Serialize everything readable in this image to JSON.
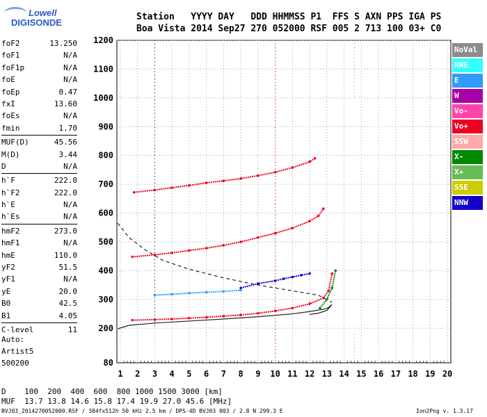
{
  "logo": {
    "line1": "Lowell",
    "line2": "DIGISONDE"
  },
  "header": {
    "row1": "Station   YYYY DAY   DDD HHMMSS P1  FFS S AXN PPS IGA PS",
    "row2": "Boa Vista 2014 Sep27 270 052000 RSF 005 2 713 100 03+ C0"
  },
  "params": [
    {
      "label": "foF2",
      "value": "13.250"
    },
    {
      "label": "foF1",
      "value": "N/A"
    },
    {
      "label": "foF1p",
      "value": "N/A"
    },
    {
      "label": "foE",
      "value": "N/A"
    },
    {
      "label": "foEp",
      "value": "0.47"
    },
    {
      "label": "fxI",
      "value": "13.60"
    },
    {
      "label": "foEs",
      "value": "N/A"
    },
    {
      "label": "fmin",
      "value": "1.70"
    },
    {
      "label": "MUF(D)",
      "value": "45.56"
    },
    {
      "label": "M(D)",
      "value": "3.44"
    },
    {
      "label": "D",
      "value": "N/A"
    },
    {
      "label": "h`F",
      "value": "222.0"
    },
    {
      "label": "h`F2",
      "value": "222.0"
    },
    {
      "label": "h`E",
      "value": "N/A"
    },
    {
      "label": "h`Es",
      "value": "N/A"
    },
    {
      "label": "hmF2",
      "value": "273.0"
    },
    {
      "label": "hmF1",
      "value": "N/A"
    },
    {
      "label": "hmE",
      "value": "110.0"
    },
    {
      "label": "yF2",
      "value": "51.5"
    },
    {
      "label": "yF1",
      "value": "N/A"
    },
    {
      "label": "yE",
      "value": "20.0"
    },
    {
      "label": "B0",
      "value": "42.5"
    },
    {
      "label": "B1",
      "value": "4.05"
    },
    {
      "label": "C-level",
      "value": "11"
    }
  ],
  "auto": {
    "l1": "Auto:",
    "l2": "Artist5",
    "l3": "500200"
  },
  "legend": [
    {
      "label": "NoVal",
      "color": "#8c8c8c"
    },
    {
      "label": "NNE",
      "color": "#33ffff"
    },
    {
      "label": "E",
      "color": "#3399ff"
    },
    {
      "label": "W",
      "color": "#aa00aa"
    },
    {
      "label": "Vo-",
      "color": "#ff44aa"
    },
    {
      "label": "Vo+",
      "color": "#ee0022"
    },
    {
      "label": "SSW",
      "color": "#ffaaaa"
    },
    {
      "label": "X-",
      "color": "#008800"
    },
    {
      "label": "X+",
      "color": "#66bb55"
    },
    {
      "label": "SSE",
      "color": "#cccc00"
    },
    {
      "label": "NNW",
      "color": "#1100cc"
    }
  ],
  "footer": {
    "d_row": "D    100  200  400  600  800 1000 1500 3000 [km]",
    "muf_row": "MUF  13.7 13.8 14.6 15.8 17.4 19.9 27.0 45.6 [MHz]",
    "filename": "BVJ03_2014270052000.RSF / 384fx512h 50 kHz 2.5 km / DPS-4D BVJ03 003 / 2.8 N 299.3 E",
    "version": "Ion2Png v. 1.3.17"
  },
  "chart_data": {
    "type": "scatter",
    "title": "",
    "xlabel": "",
    "ylabel": "",
    "x_ticks": [
      1,
      2,
      3,
      4,
      5,
      6,
      7,
      8,
      9,
      10,
      11,
      12,
      13,
      14,
      15,
      16,
      17,
      18,
      19,
      20
    ],
    "y_ticks": [
      80,
      200,
      300,
      400,
      500,
      600,
      700,
      800,
      900,
      1000,
      1100,
      1200
    ],
    "xlim": [
      0.8,
      20.2
    ],
    "ylim": [
      80,
      1200
    ],
    "series": [
      {
        "name": "Vo+",
        "color": "#ee0022",
        "x": [
          1.7,
          3,
          4,
          5,
          6,
          7,
          8,
          9,
          10,
          11,
          12,
          12.8,
          13.1,
          13.3
        ],
        "y": [
          228,
          230,
          232,
          235,
          238,
          242,
          246,
          252,
          260,
          270,
          285,
          305,
          330,
          390
        ]
      },
      {
        "name": "Vo+",
        "color": "#ee0022",
        "x": [
          1.7,
          3,
          4,
          5,
          6,
          7,
          8,
          9,
          10,
          11,
          12,
          12.5,
          12.8
        ],
        "y": [
          448,
          455,
          462,
          470,
          478,
          488,
          500,
          515,
          530,
          548,
          572,
          590,
          615
        ]
      },
      {
        "name": "Vo+",
        "color": "#ee0022",
        "x": [
          1.8,
          3,
          4,
          5,
          6,
          7,
          8,
          9,
          10,
          11,
          12,
          12.3
        ],
        "y": [
          672,
          680,
          688,
          696,
          705,
          712,
          720,
          730,
          742,
          758,
          778,
          790
        ]
      },
      {
        "name": "X-",
        "color": "#008800",
        "x": [
          12.6,
          13,
          13.3,
          13.5
        ],
        "y": [
          270,
          300,
          340,
          400
        ]
      },
      {
        "name": "NNW",
        "color": "#1100cc",
        "x": [
          8,
          9,
          10,
          10.5,
          11,
          11.5,
          12
        ],
        "y": [
          340,
          355,
          365,
          372,
          378,
          384,
          390
        ]
      },
      {
        "name": "E",
        "color": "#3399ff",
        "x": [
          3,
          4,
          5,
          6,
          7,
          8
        ],
        "y": [
          315,
          318,
          322,
          325,
          328,
          332
        ]
      }
    ],
    "model_profiles": [
      {
        "style": "solid",
        "x": [
          0.85,
          1.5,
          3,
          5,
          7,
          9,
          11,
          12,
          13,
          13.3,
          13,
          12.5,
          12
        ],
        "y": [
          198,
          210,
          218,
          225,
          232,
          240,
          250,
          258,
          268,
          282,
          262,
          252,
          248
        ]
      },
      {
        "style": "dashed",
        "x": [
          0.85,
          1.5,
          2.5,
          3.5,
          5,
          7,
          9,
          11,
          12.5,
          13.3
        ],
        "y": [
          565,
          515,
          470,
          435,
          405,
          375,
          350,
          330,
          315,
          290
        ]
      }
    ]
  }
}
